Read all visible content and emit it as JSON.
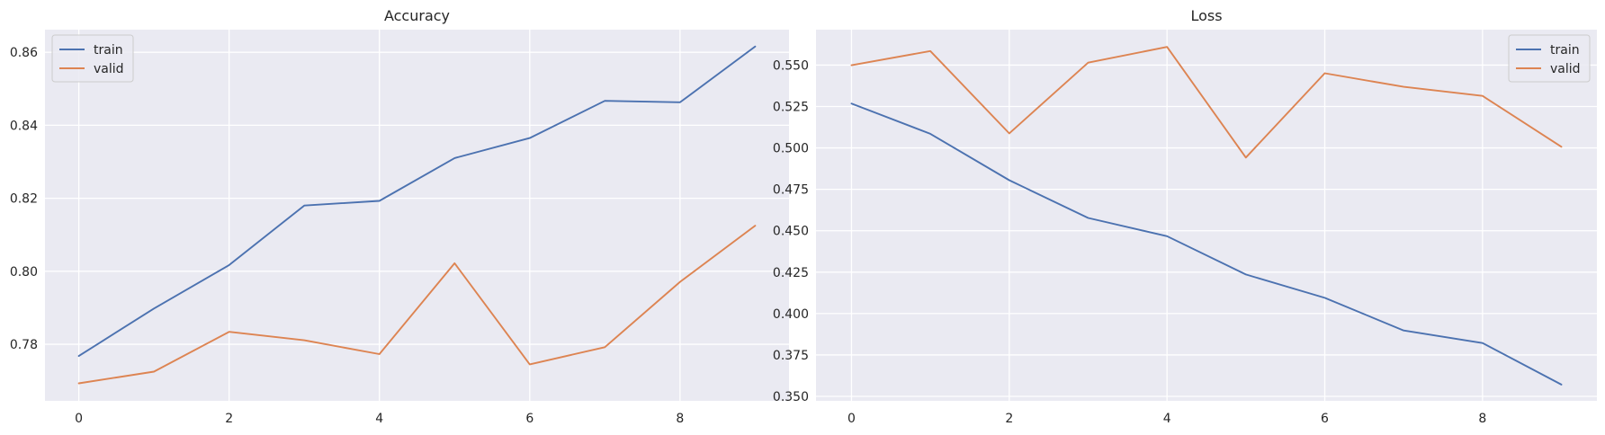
{
  "chart_data": [
    {
      "type": "line",
      "title": "Accuracy",
      "xlabel": "",
      "ylabel": "",
      "x": [
        0,
        1,
        2,
        3,
        4,
        5,
        6,
        7,
        8,
        9
      ],
      "xlim": [
        -0.45,
        9.45
      ],
      "ylim": [
        0.7645,
        0.8662
      ],
      "xticks": [
        0,
        2,
        4,
        6,
        8
      ],
      "yticks": [
        0.78,
        0.8,
        0.82,
        0.84,
        0.86
      ],
      "ytick_labels": [
        "0.78",
        "0.80",
        "0.82",
        "0.84",
        "0.86"
      ],
      "grid": true,
      "legend": "top-left",
      "series": [
        {
          "name": "train",
          "color": "#4c72b0",
          "values": [
            0.7768,
            0.7898,
            0.8017,
            0.818,
            0.8193,
            0.831,
            0.8365,
            0.8467,
            0.8463,
            0.8616
          ]
        },
        {
          "name": "valid",
          "color": "#dd8452",
          "values": [
            0.7693,
            0.7725,
            0.7834,
            0.7811,
            0.7773,
            0.8022,
            0.7745,
            0.7792,
            0.7971,
            0.8125
          ]
        }
      ]
    },
    {
      "type": "line",
      "title": "Loss",
      "xlabel": "",
      "ylabel": "",
      "x": [
        0,
        1,
        2,
        3,
        4,
        5,
        6,
        7,
        8,
        9
      ],
      "xlim": [
        -0.45,
        9.45
      ],
      "ylim": [
        0.3473,
        0.5714
      ],
      "xticks": [
        0,
        2,
        4,
        6,
        8
      ],
      "yticks": [
        0.35,
        0.375,
        0.4,
        0.425,
        0.45,
        0.475,
        0.5,
        0.525,
        0.55
      ],
      "ytick_labels": [
        "0.350",
        "0.375",
        "0.400",
        "0.425",
        "0.450",
        "0.475",
        "0.500",
        "0.525",
        "0.550"
      ],
      "grid": true,
      "legend": "top-right",
      "series": [
        {
          "name": "train",
          "color": "#4c72b0",
          "values": [
            0.5268,
            0.5085,
            0.4805,
            0.4577,
            0.4467,
            0.4236,
            0.4095,
            0.3898,
            0.3822,
            0.3571
          ]
        },
        {
          "name": "valid",
          "color": "#dd8452",
          "values": [
            0.5499,
            0.5585,
            0.5088,
            0.5515,
            0.561,
            0.4942,
            0.5451,
            0.5369,
            0.5314,
            0.5007
          ]
        }
      ]
    }
  ]
}
